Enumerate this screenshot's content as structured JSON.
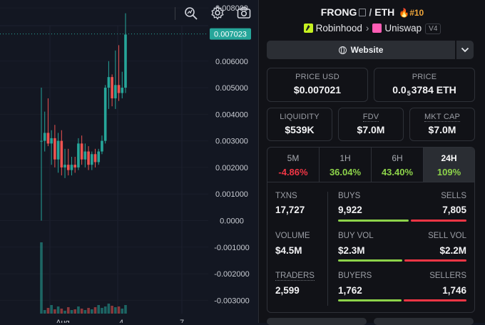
{
  "chart": {
    "price_labels": [
      "0.008000",
      "0.006000",
      "0.005000",
      "0.004000",
      "0.003000",
      "0.002000",
      "0.001000",
      "0.0000",
      "-0.001000",
      "-0.002000",
      "-0.003000"
    ],
    "current_price_label": "0.007023",
    "x_labels": [
      "Aug",
      "4",
      "7"
    ],
    "colors": {
      "up": "#26a69a",
      "down": "#ef5350",
      "price_tag": "#26a69a",
      "background": "#131722"
    }
  },
  "chart_data": {
    "type": "candlestick",
    "series": [
      {
        "o": 0.003,
        "h": 0.005,
        "l": 0.0,
        "c": 0.003
      },
      {
        "o": 0.003,
        "h": 0.0041,
        "l": 0.0026,
        "c": 0.0033
      },
      {
        "o": 0.0033,
        "h": 0.0046,
        "l": 0.0028,
        "c": 0.0029
      },
      {
        "o": 0.0029,
        "h": 0.0034,
        "l": 0.0021,
        "c": 0.0031
      },
      {
        "o": 0.0031,
        "h": 0.0036,
        "l": 0.002,
        "c": 0.0023
      },
      {
        "o": 0.0023,
        "h": 0.0033,
        "l": 0.0018,
        "c": 0.003
      },
      {
        "o": 0.003,
        "h": 0.0034,
        "l": 0.0017,
        "c": 0.002
      },
      {
        "o": 0.002,
        "h": 0.0027,
        "l": 0.0016,
        "c": 0.0021
      },
      {
        "o": 0.0021,
        "h": 0.0027,
        "l": 0.0017,
        "c": 0.0019
      },
      {
        "o": 0.0019,
        "h": 0.0024,
        "l": 0.0017,
        "c": 0.0021
      },
      {
        "o": 0.0021,
        "h": 0.0024,
        "l": 0.0018,
        "c": 0.002
      },
      {
        "o": 0.002,
        "h": 0.0031,
        "l": 0.0019,
        "c": 0.0029
      },
      {
        "o": 0.0029,
        "h": 0.0032,
        "l": 0.0021,
        "c": 0.0023
      },
      {
        "o": 0.0023,
        "h": 0.0029,
        "l": 0.002,
        "c": 0.0026
      },
      {
        "o": 0.0026,
        "h": 0.0028,
        "l": 0.0019,
        "c": 0.0021
      },
      {
        "o": 0.0021,
        "h": 0.0026,
        "l": 0.0019,
        "c": 0.0025
      },
      {
        "o": 0.0025,
        "h": 0.0027,
        "l": 0.002,
        "c": 0.0022
      },
      {
        "o": 0.0022,
        "h": 0.0027,
        "l": 0.0021,
        "c": 0.0026
      },
      {
        "o": 0.0026,
        "h": 0.0032,
        "l": 0.0025,
        "c": 0.003
      },
      {
        "o": 0.003,
        "h": 0.0051,
        "l": 0.0029,
        "c": 0.005
      },
      {
        "o": 0.005,
        "h": 0.006,
        "l": 0.0042,
        "c": 0.0054
      },
      {
        "o": 0.0054,
        "h": 0.0055,
        "l": 0.0043,
        "c": 0.0046
      },
      {
        "o": 0.0046,
        "h": 0.0064,
        "l": 0.0042,
        "c": 0.0051
      },
      {
        "o": 0.0051,
        "h": 0.0066,
        "l": 0.0045,
        "c": 0.0048
      },
      {
        "o": 0.0048,
        "h": 0.0056,
        "l": 0.0046,
        "c": 0.005
      },
      {
        "o": 0.005,
        "h": 0.0078,
        "l": 0.0048,
        "c": 0.007
      }
    ],
    "volume_relative": [
      1.0,
      0.05,
      0.08,
      0.12,
      0.06,
      0.1,
      0.07,
      0.04,
      0.09,
      0.05,
      0.06,
      0.1,
      0.07,
      0.05,
      0.08,
      0.06,
      0.09,
      0.12,
      0.08,
      0.1,
      0.14,
      0.11,
      0.09,
      0.1,
      0.07,
      0.12
    ],
    "ylim": [
      -0.0035,
      0.0083
    ]
  },
  "pair": {
    "base": "FRONG",
    "quote": "ETH",
    "separator": "/",
    "rank": "#10"
  },
  "venue": {
    "chain": "Robinhood",
    "dex": "Uniswap",
    "version": "V4"
  },
  "website": {
    "label": "Website"
  },
  "price_cards": [
    {
      "label": "PRICE USD",
      "value": "$0.007021"
    },
    {
      "label": "PRICE",
      "value_prefix": "0.0",
      "value_sub": "5",
      "value_rest": "3784 ETH"
    }
  ],
  "metric_cards": [
    {
      "label": "LIQUIDITY",
      "value": "$539K"
    },
    {
      "label": "FDV",
      "value": "$7.0M"
    },
    {
      "label": "MKT CAP",
      "value": "$7.0M"
    }
  ],
  "timeframes": [
    {
      "label": "5M",
      "change": "-4.86%",
      "color": "#f23645"
    },
    {
      "label": "1H",
      "change": "36.04%",
      "color": "#8dd34a"
    },
    {
      "label": "6H",
      "change": "43.40%",
      "color": "#8dd34a"
    },
    {
      "label": "24H",
      "change": "109%",
      "color": "#8dd34a"
    }
  ],
  "stats": {
    "txns": {
      "label": "TXNS",
      "value": "17,727"
    },
    "buys": {
      "label": "BUYS",
      "value": "9,922"
    },
    "sells": {
      "label": "SELLS",
      "value": "7,805"
    },
    "volume": {
      "label": "VOLUME",
      "value": "$4.5M"
    },
    "buy_vol": {
      "label": "BUY VOL",
      "value": "$2.3M"
    },
    "sell_vol": {
      "label": "SELL VOL",
      "value": "$2.2M"
    },
    "traders": {
      "label": "TRADERS",
      "value": "2,599"
    },
    "buyers": {
      "label": "BUYERS",
      "value": "1,762"
    },
    "sellers": {
      "label": "SELLERS",
      "value": "1,746"
    }
  },
  "ratios": {
    "buys": 0.56,
    "buy_vol": 0.51,
    "buyers": 0.5
  },
  "colors": {
    "buy": "#8dd34a",
    "sell": "#f23645"
  },
  "icons": [
    "indicator-search-icon",
    "settings-gear-icon",
    "camera-icon",
    "globe-icon",
    "chevron-down-icon",
    "copy-icon",
    "flame-icon"
  ]
}
